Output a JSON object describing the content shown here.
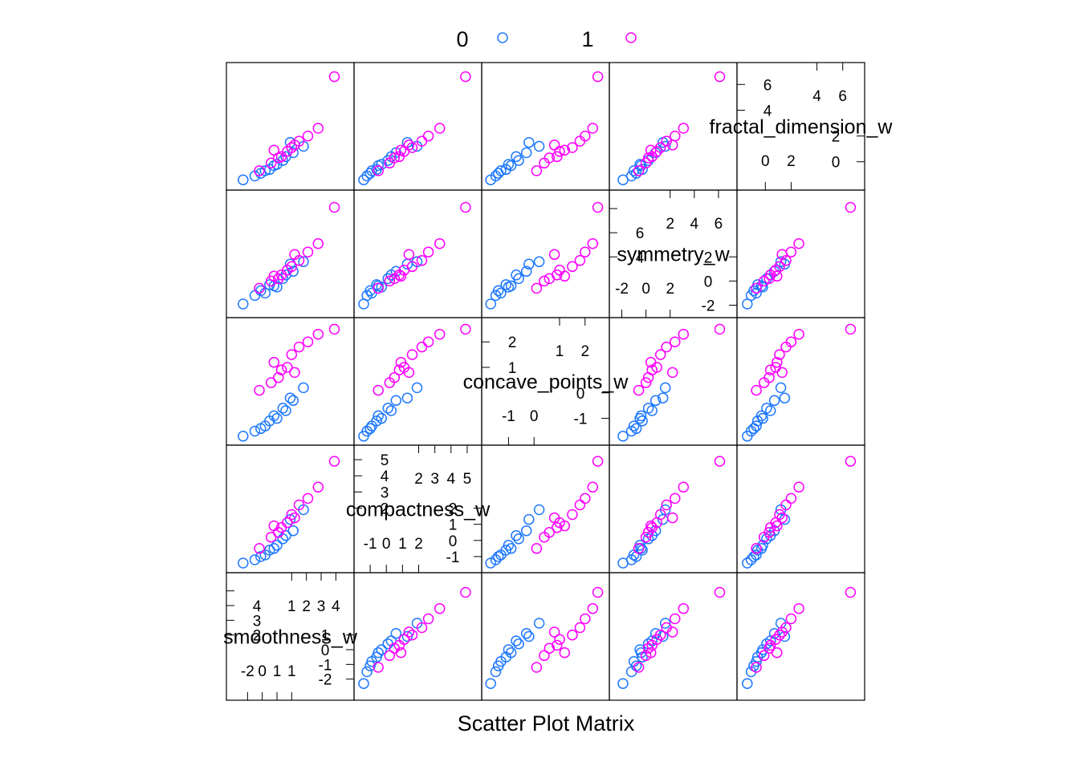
{
  "chart_data": {
    "type": "scatter",
    "title": "Scatter Plot Matrix",
    "legend": {
      "placement": "top",
      "entries": [
        {
          "label": "0",
          "color": "#1E78FF",
          "marker": "open-circle"
        },
        {
          "label": "1",
          "color": "#FF00FF",
          "marker": "open-circle"
        }
      ]
    },
    "grid": false,
    "variables": [
      {
        "label": "smoothness_w",
        "range": [
          -3.0,
          4.8
        ],
        "low_ticks": [
          -2,
          -1,
          0,
          1
        ],
        "high_ticks": [
          1,
          2,
          3,
          4
        ],
        "diag_low": [
          "-2",
          "0",
          "1"
        ],
        "diag_high": [
          "1",
          "2",
          "3",
          "4"
        ],
        "diag_left": [
          "2",
          "3",
          "4"
        ],
        "diag_right": [
          "-2",
          "-1",
          "0",
          "1"
        ]
      },
      {
        "label": "compactness_w",
        "range": [
          -1.6,
          5.5
        ],
        "low_ticks": [
          -1,
          0,
          1,
          2
        ],
        "high_ticks": [
          2,
          3,
          4,
          5
        ],
        "diag_low": [
          "-1",
          "0",
          "1",
          "2"
        ],
        "diag_high": [
          "2",
          "3",
          "4",
          "5"
        ],
        "diag_left": [
          "2",
          "3",
          "4",
          "5"
        ],
        "diag_right": [
          "-1",
          "0",
          "1",
          "2"
        ]
      },
      {
        "label": "concave_points_w",
        "range": [
          -1.8,
          2.7
        ],
        "low_ticks": [
          -1,
          0
        ],
        "high_ticks": [
          1,
          2
        ],
        "diag_low": [
          "-1",
          "0"
        ],
        "diag_high": [
          "1",
          "2"
        ],
        "diag_left": [
          "1",
          "2"
        ],
        "diag_right": [
          "-1",
          "0"
        ]
      },
      {
        "label": "symmetry_w",
        "range": [
          -2.5,
          7.0
        ],
        "low_ticks": [
          -2,
          0,
          2
        ],
        "high_ticks": [
          2,
          4,
          6
        ],
        "diag_low": [
          "-2",
          "0",
          "2"
        ],
        "diag_high": [
          "2",
          "4",
          "6"
        ],
        "diag_left": [
          "4",
          "6"
        ],
        "diag_right": [
          "-2",
          "0",
          "2"
        ]
      },
      {
        "label": "fractal_dimension_w",
        "range": [
          -1.7,
          7.2
        ],
        "low_ticks": [
          0,
          2
        ],
        "high_ticks": [
          4,
          6
        ],
        "diag_low": [
          "0",
          "2"
        ],
        "diag_high": [
          "4",
          "6"
        ],
        "diag_left": [
          "4",
          "6"
        ],
        "diag_right": [
          "0",
          "2"
        ]
      }
    ],
    "series": [
      {
        "name": "0",
        "color": "#1E78FF",
        "points": [
          {
            "smoothness_w": -0.8,
            "compactness_w": -0.9,
            "concave_points_w": -1.3,
            "symmetry_w": -1.0,
            "fractal_dimension_w": -0.7
          },
          {
            "smoothness_w": -1.5,
            "compactness_w": -1.2,
            "concave_points_w": -1.5,
            "symmetry_w": -1.2,
            "fractal_dimension_w": -1.1
          },
          {
            "smoothness_w": -0.2,
            "compactness_w": -0.5,
            "concave_points_w": -0.9,
            "symmetry_w": -0.4,
            "fractal_dimension_w": -0.3
          },
          {
            "smoothness_w": 0.4,
            "compactness_w": 0.1,
            "concave_points_w": -0.6,
            "symmetry_w": 0.2,
            "fractal_dimension_w": 0.1
          },
          {
            "smoothness_w": -2.3,
            "compactness_w": -1.4,
            "concave_points_w": -1.7,
            "symmetry_w": -1.9,
            "fractal_dimension_w": -1.4
          },
          {
            "smoothness_w": 1.1,
            "compactness_w": 0.6,
            "concave_points_w": -0.3,
            "symmetry_w": 0.8,
            "fractal_dimension_w": 0.7
          },
          {
            "smoothness_w": 0.9,
            "compactness_w": 1.3,
            "concave_points_w": -0.2,
            "symmetry_w": 1.4,
            "fractal_dimension_w": 1.5
          },
          {
            "smoothness_w": -1.1,
            "compactness_w": -1.0,
            "concave_points_w": -1.4,
            "symmetry_w": -0.8,
            "fractal_dimension_w": -0.9
          },
          {
            "smoothness_w": 0.0,
            "compactness_w": -0.3,
            "concave_points_w": -1.0,
            "symmetry_w": -0.5,
            "fractal_dimension_w": -0.2
          },
          {
            "smoothness_w": 1.8,
            "compactness_w": 1.9,
            "concave_points_w": 0.2,
            "symmetry_w": 1.6,
            "fractal_dimension_w": 1.2
          },
          {
            "smoothness_w": -0.5,
            "compactness_w": -0.6,
            "concave_points_w": -1.1,
            "symmetry_w": -0.3,
            "fractal_dimension_w": -0.6
          },
          {
            "smoothness_w": 0.6,
            "compactness_w": 0.3,
            "concave_points_w": -0.7,
            "symmetry_w": 0.5,
            "fractal_dimension_w": 0.4
          }
        ]
      },
      {
        "name": "1",
        "color": "#FF00FF",
        "points": [
          {
            "smoothness_w": 0.3,
            "compactness_w": 0.8,
            "concave_points_w": 0.9,
            "symmetry_w": 0.5,
            "fractal_dimension_w": 0.4
          },
          {
            "smoothness_w": 1.0,
            "compactness_w": 1.6,
            "concave_points_w": 1.5,
            "symmetry_w": 1.2,
            "fractal_dimension_w": 1.1
          },
          {
            "smoothness_w": -0.4,
            "compactness_w": 0.2,
            "concave_points_w": 0.4,
            "symmetry_w": 0.0,
            "fractal_dimension_w": -0.1
          },
          {
            "smoothness_w": 2.1,
            "compactness_w": 2.6,
            "concave_points_w": 2.0,
            "symmetry_w": 2.4,
            "fractal_dimension_w": 2.0
          },
          {
            "smoothness_w": 3.9,
            "compactness_w": 4.9,
            "concave_points_w": 2.5,
            "symmetry_w": 6.1,
            "fractal_dimension_w": 6.6
          },
          {
            "smoothness_w": 0.7,
            "compactness_w": 1.1,
            "concave_points_w": 1.0,
            "symmetry_w": 0.9,
            "fractal_dimension_w": 0.8
          },
          {
            "smoothness_w": -1.2,
            "compactness_w": -0.5,
            "concave_points_w": 0.1,
            "symmetry_w": -0.6,
            "fractal_dimension_w": -0.7
          },
          {
            "smoothness_w": 1.5,
            "compactness_w": 2.2,
            "concave_points_w": 1.8,
            "symmetry_w": 1.7,
            "fractal_dimension_w": 1.6
          },
          {
            "smoothness_w": 2.8,
            "compactness_w": 3.3,
            "concave_points_w": 2.3,
            "symmetry_w": 3.1,
            "fractal_dimension_w": 2.6
          },
          {
            "smoothness_w": 0.1,
            "compactness_w": 0.5,
            "concave_points_w": 0.6,
            "symmetry_w": 0.2,
            "fractal_dimension_w": 0.3
          },
          {
            "smoothness_w": -0.2,
            "compactness_w": 0.9,
            "concave_points_w": 1.2,
            "symmetry_w": 0.4,
            "fractal_dimension_w": 0.9
          },
          {
            "smoothness_w": 1.2,
            "compactness_w": 1.4,
            "concave_points_w": 0.8,
            "symmetry_w": 2.2,
            "fractal_dimension_w": 1.3
          }
        ]
      }
    ]
  }
}
